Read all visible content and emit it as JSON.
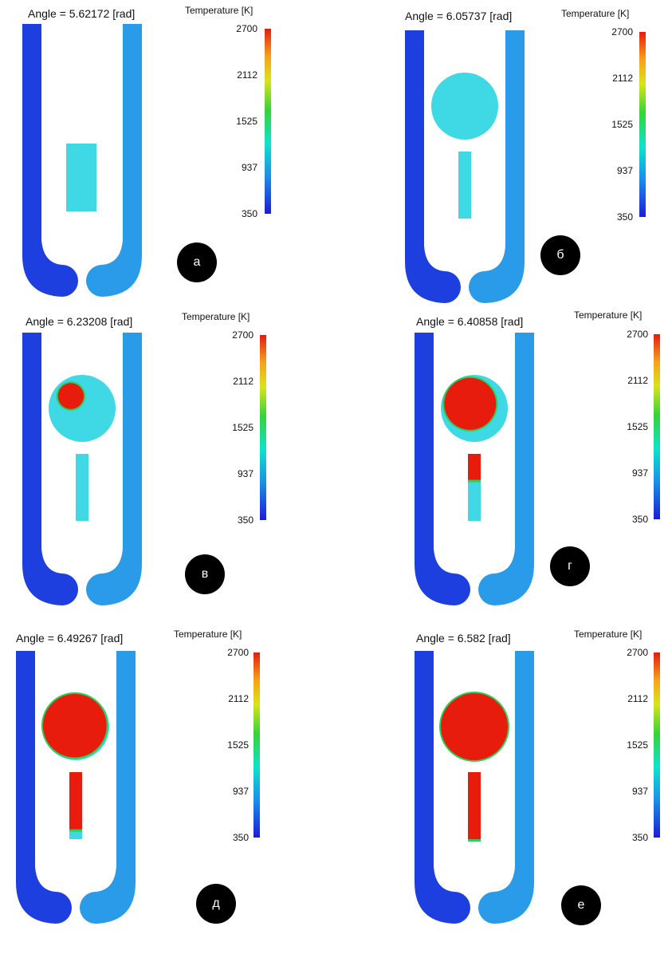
{
  "colorbar": {
    "title": "Temperature [K]",
    "ticks": [
      "2700",
      "2112",
      "1525",
      "937",
      "350"
    ],
    "range": [
      350,
      2700
    ],
    "colors": [
      "#e51b0f",
      "#f7a21a",
      "#d8e41c",
      "#35d33a",
      "#0ee3cc",
      "#1a8ee8",
      "#1c1cd6"
    ]
  },
  "panels": [
    {
      "angle": "Angle = 5.62172 [rad]",
      "label": "а",
      "chamber": "rectangle",
      "fill_fraction": 0
    },
    {
      "angle": "Angle = 6.05737 [rad]",
      "label": "б",
      "chamber": "circle",
      "fill_fraction": 0
    },
    {
      "angle": "Angle = 6.23208 [rad]",
      "label": "в",
      "chamber": "circle",
      "fill_fraction": 0.15
    },
    {
      "angle": "Angle = 6.40858 [rad]",
      "label": "г",
      "chamber": "circle",
      "fill_fraction": 0.6
    },
    {
      "angle": "Angle = 6.49267 [rad]",
      "label": "д",
      "chamber": "circle",
      "fill_fraction": 0.9
    },
    {
      "angle": "Angle = 6.582 [rad]",
      "label": "е",
      "chamber": "circle",
      "fill_fraction": 1.0
    }
  ],
  "colors": {
    "cold_pipe": "#1e3fe0",
    "warm_pipe": "#2a9be8",
    "charge": "#3fd9e6",
    "burned": "#e81c0c",
    "flame_front": "#2bd05a"
  }
}
